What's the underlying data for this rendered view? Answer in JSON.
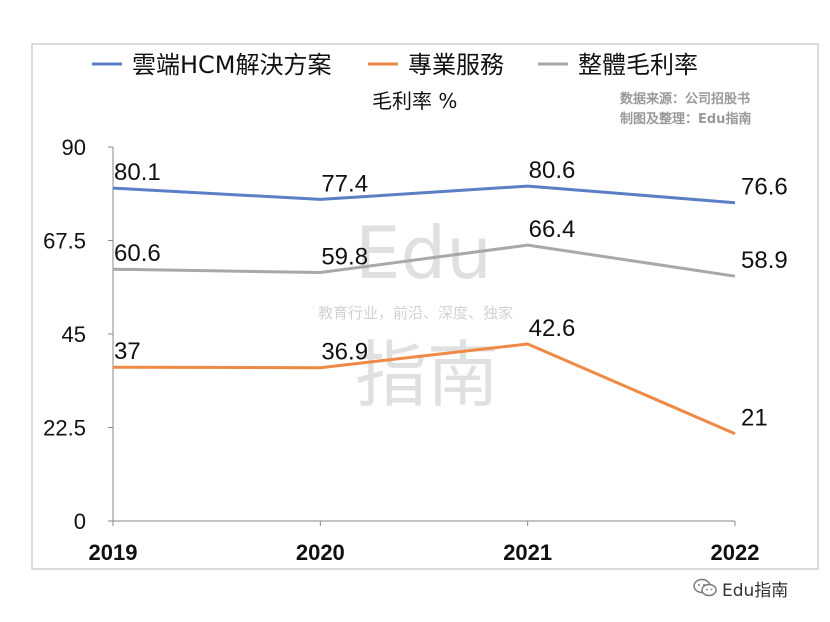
{
  "chart_data": {
    "type": "line",
    "categories": [
      "2019",
      "2020",
      "2021",
      "2022"
    ],
    "series": [
      {
        "name": "雲端HCM解決方案",
        "values": [
          80.1,
          77.4,
          80.6,
          76.6
        ],
        "labels": [
          "80.1",
          "77.4",
          "80.6",
          "76.6"
        ],
        "color": "#5b7fc4"
      },
      {
        "name": "專業服務",
        "values": [
          37,
          36.9,
          42.6,
          21
        ],
        "labels": [
          "37",
          "36.9",
          "42.6",
          "21"
        ],
        "color": "#ee8a45"
      },
      {
        "name": "整體毛利率",
        "values": [
          60.6,
          59.8,
          66.4,
          58.9
        ],
        "labels": [
          "60.6",
          "59.8",
          "66.4",
          "58.9"
        ],
        "color": "#a8a8a8"
      }
    ],
    "ylabel": "毛利率 %",
    "ylim": [
      0,
      90
    ],
    "yticks": [
      "0",
      "22.5",
      "45",
      "67.5",
      "90"
    ],
    "grid": false,
    "legend_position": "top"
  },
  "source": {
    "line1": "数据来源：公司招股书",
    "line2": "制图及整理：Edu指南"
  },
  "watermark": {
    "big_top": "Edu",
    "small": "教育行业，前沿、深度、独家",
    "big_bottom": "指南"
  },
  "brand": {
    "name": "Edu指南",
    "icon": "wechat-icon"
  }
}
